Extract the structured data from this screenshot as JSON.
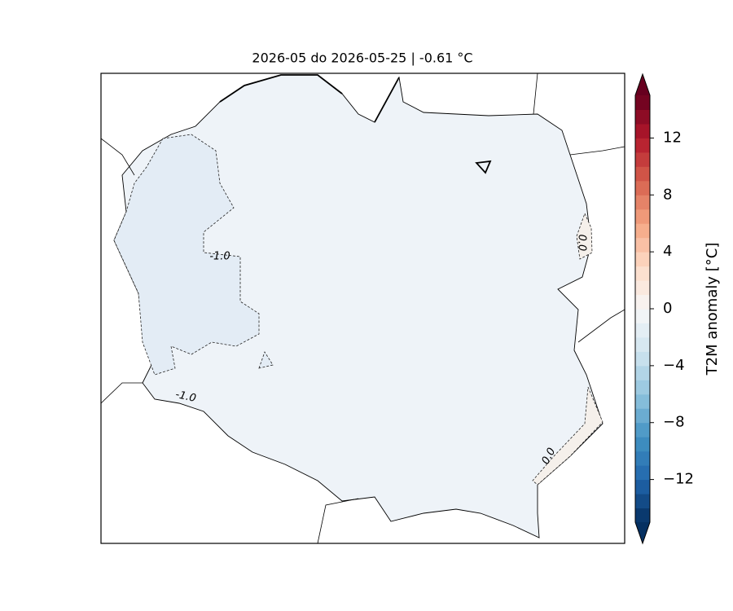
{
  "title": "2026-05 do 2026-05-25 | -0.61 °C",
  "colorbar": {
    "label": "T2M anomaly [°C]",
    "colormap": "RdBu_r",
    "lim": [
      -15,
      15
    ],
    "ticks": [
      {
        "value": -12,
        "label": "−12"
      },
      {
        "value": -8,
        "label": "−8"
      },
      {
        "value": -4,
        "label": "−4"
      },
      0,
      4,
      8,
      12
    ]
  },
  "contour_labels": [
    "-1.0",
    "-1.0",
    "0.0",
    "0.0"
  ]
}
